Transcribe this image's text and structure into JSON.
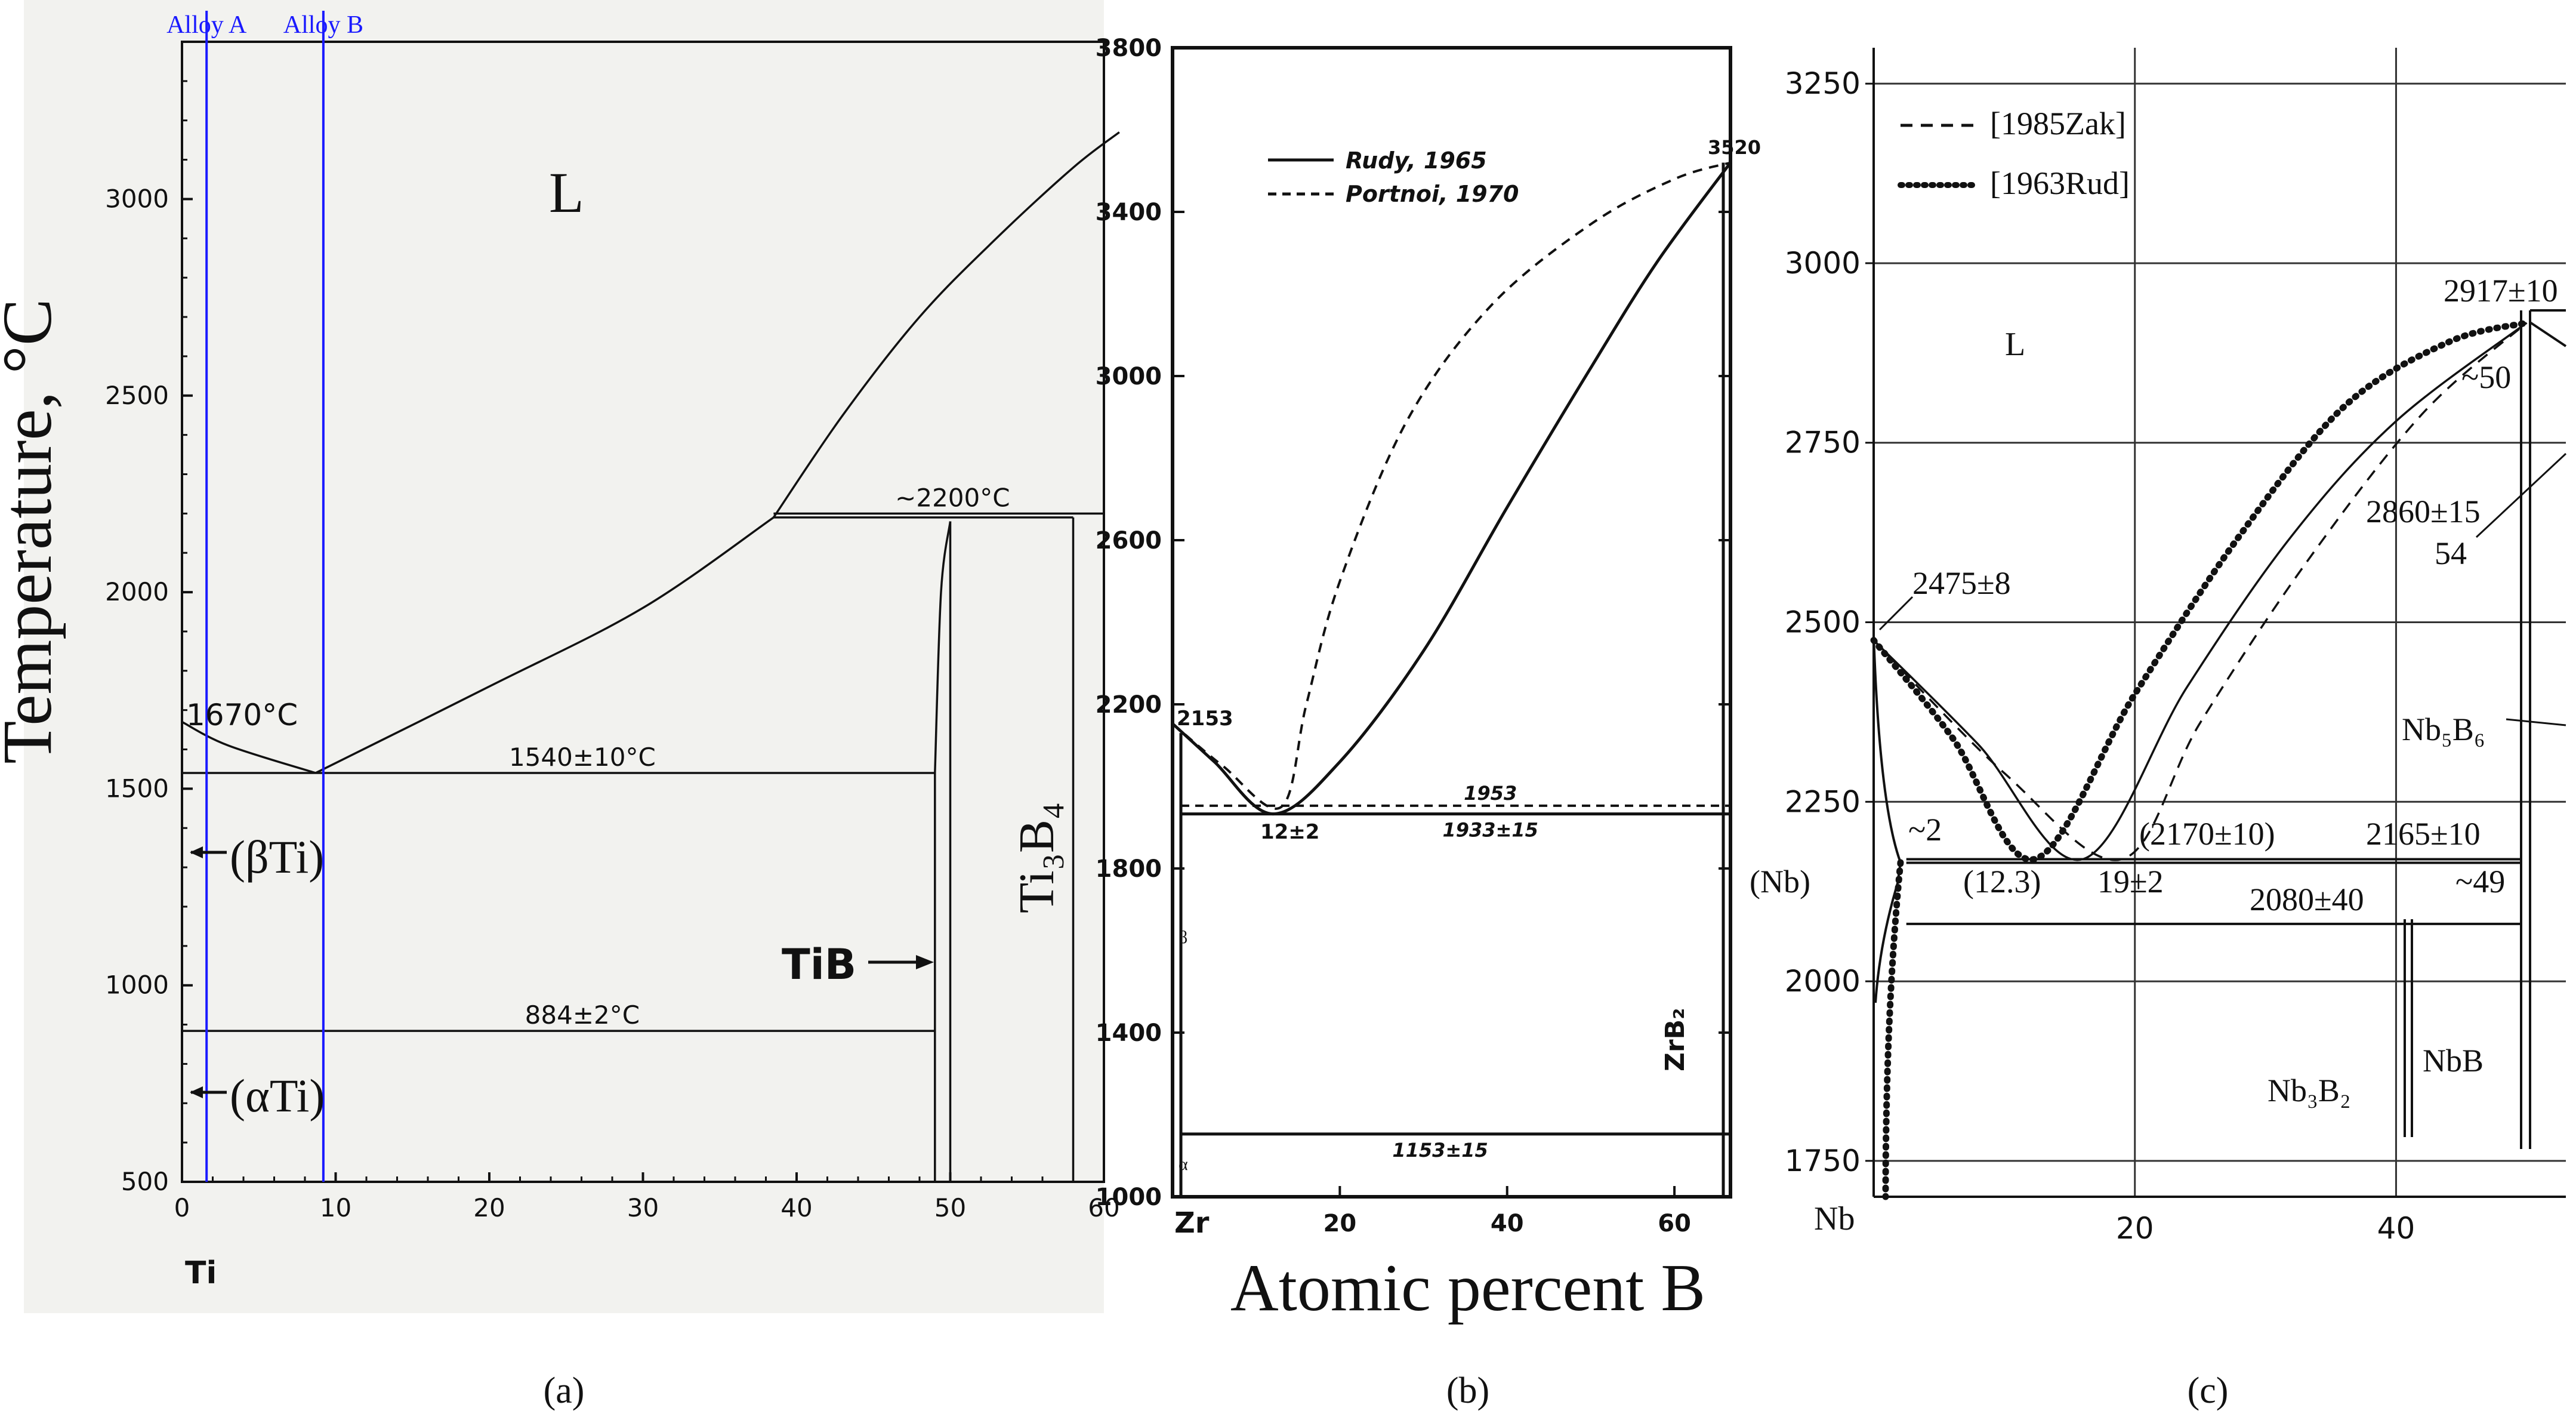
{
  "figure": {
    "shared_xlabel": "Atomic percent B",
    "shared_ylabel": "Temperature, °C"
  },
  "chart_data": [
    {
      "panel_label": "(a)",
      "type": "line",
      "xlim": [
        0,
        60
      ],
      "ylim": [
        500,
        3400
      ],
      "xticks": [
        0,
        10,
        20,
        30,
        40,
        50,
        60
      ],
      "xtick_labels": [
        "0",
        "10",
        "20",
        "30",
        "40",
        "50",
        "60"
      ],
      "yticks": [
        500,
        1000,
        1500,
        2000,
        2500,
        3000
      ],
      "ytick_labels": [
        "500",
        "1000",
        "1500",
        "2000",
        "2500",
        "3000"
      ],
      "x_origin_label": "Ti",
      "alloy_lines": [
        {
          "name": "Alloy A",
          "x": 1.6,
          "color": "#1a1aff"
        },
        {
          "name": "Alloy B",
          "x": 9.2,
          "color": "#1a1aff"
        }
      ],
      "curves": [
        {
          "name": "liquidus-ti-side",
          "points": [
            [
              0,
              1670
            ],
            [
              3,
              1610
            ],
            [
              8.7,
              1540
            ]
          ]
        },
        {
          "name": "liquidus-tib-side",
          "points": [
            [
              8.7,
              1540
            ],
            [
              20,
              1760
            ],
            [
              30,
              1960
            ],
            [
              38.5,
              2190
            ]
          ]
        },
        {
          "name": "liquidus-boron-side",
          "points": [
            [
              38.5,
              2190
            ],
            [
              43,
              2450
            ],
            [
              48,
              2700
            ],
            [
              53,
              2900
            ],
            [
              58,
              3080
            ],
            [
              61,
              3170
            ]
          ]
        },
        {
          "name": "tib-left-boundary",
          "points": [
            [
              49,
              1540
            ],
            [
              49.4,
              2000
            ],
            [
              50,
              2180
            ]
          ]
        },
        {
          "name": "tib-right-boundary",
          "points": [
            [
              50,
              2180
            ],
            [
              50,
              500
            ]
          ]
        },
        {
          "name": "ti3b4-line",
          "points": [
            [
              58,
              2190
            ],
            [
              58,
              500
            ]
          ]
        },
        {
          "name": "tib-left-lower",
          "points": [
            [
              49,
              1540
            ],
            [
              49,
              500
            ]
          ]
        }
      ],
      "isotherms": [
        {
          "y": 2200,
          "x": [
            38.5,
            60
          ],
          "label": "~2200°C"
        },
        {
          "y": 2190,
          "x": [
            38.5,
            58
          ]
        },
        {
          "y": 1540,
          "x": [
            0,
            49
          ],
          "label": "1540±10°C"
        },
        {
          "y": 884,
          "x": [
            0,
            49
          ],
          "label": "884±2°C"
        }
      ],
      "annotations": [
        "L",
        "1670°C",
        "(βTi)",
        "(αTi)",
        "TiB",
        "Ti₃B₄"
      ],
      "grid": false
    },
    {
      "panel_label": "(b)",
      "type": "line",
      "xlim": [
        0,
        66.7
      ],
      "ylim": [
        1000,
        3800
      ],
      "xticks": [
        20,
        40,
        60
      ],
      "xtick_labels": [
        "20",
        "40",
        "60"
      ],
      "yticks": [
        1000,
        1400,
        1800,
        2200,
        2600,
        3000,
        3400,
        3800
      ],
      "ytick_labels": [
        "1000",
        "1400",
        "1800",
        "2200",
        "2600",
        "3000",
        "3400",
        "3800"
      ],
      "x_origin_label": "Zr",
      "legend": {
        "placement": "top-left",
        "entries": [
          {
            "name": "Rudy, 1965",
            "style": "solid"
          },
          {
            "name": "Portnoi, 1970",
            "style": "dashed"
          }
        ]
      },
      "series": [
        {
          "name": "Rudy, 1965",
          "style": "solid",
          "points": [
            [
              0,
              2153
            ],
            [
              5,
              2060
            ],
            [
              12,
              1933
            ],
            [
              20,
              2060
            ],
            [
              30,
              2330
            ],
            [
              40,
              2680
            ],
            [
              50,
              3020
            ],
            [
              58,
              3280
            ],
            [
              66.7,
              3520
            ]
          ]
        },
        {
          "name": "Portnoi, 1970",
          "style": "dashed",
          "points": [
            [
              0,
              2153
            ],
            [
              6,
              2050
            ],
            [
              13,
              1950
            ],
            [
              16,
              2200
            ],
            [
              20,
              2500
            ],
            [
              28,
              2890
            ],
            [
              38,
              3170
            ],
            [
              50,
              3370
            ],
            [
              60,
              3480
            ],
            [
              66.7,
              3520
            ]
          ]
        }
      ],
      "isotherms": [
        {
          "y": 1953,
          "style": "dashed",
          "label": "1953"
        },
        {
          "y": 1933,
          "style": "solid",
          "label": "1933±15"
        },
        {
          "y": 1153,
          "style": "solid",
          "label": "1153±15"
        }
      ],
      "annotations": [
        "2153",
        "12±2",
        "3520",
        "ZrB₂",
        "β",
        "α"
      ],
      "grid": false
    },
    {
      "panel_label": "(c)",
      "type": "line",
      "xlim": [
        0,
        53
      ],
      "ylim": [
        1700,
        3300
      ],
      "xticks": [
        20,
        40
      ],
      "xtick_labels": [
        "20",
        "40"
      ],
      "yticks": [
        1750,
        2000,
        2250,
        2500,
        2750,
        3000,
        3250
      ],
      "ytick_labels": [
        "1750",
        "2000",
        "2250",
        "2500",
        "2750",
        "3000",
        "3250"
      ],
      "x_origin_label": "Nb",
      "legend": {
        "placement": "top-left",
        "entries": [
          {
            "name": "[1985Zak]",
            "style": "dashed"
          },
          {
            "name": "[1963Rud]",
            "style": "dotted"
          }
        ]
      },
      "series": [
        {
          "name": "[1985Zak]",
          "style": "dashed",
          "points": [
            [
              0,
              2475
            ],
            [
              10,
              2290
            ],
            [
              19,
              2170
            ],
            [
              25,
              2360
            ],
            [
              33,
              2580
            ],
            [
              42,
              2790
            ],
            [
              50,
              2917
            ]
          ]
        },
        {
          "name": "[1963Rud]",
          "style": "dotted",
          "points": [
            [
              0,
              2475
            ],
            [
              6,
              2340
            ],
            [
              12.3,
              2170
            ],
            [
              20,
              2400
            ],
            [
              28,
              2620
            ],
            [
              36,
              2800
            ],
            [
              44,
              2890
            ],
            [
              50,
              2917
            ]
          ]
        },
        {
          "name": "solid",
          "style": "solid",
          "points": [
            [
              0,
              2475
            ],
            [
              8,
              2330
            ],
            [
              16,
              2170
            ],
            [
              24,
              2410
            ],
            [
              32,
              2620
            ],
            [
              40,
              2780
            ],
            [
              50,
              2917
            ]
          ]
        }
      ],
      "isotherms": [
        {
          "y": 2170,
          "label": "(2170±10)"
        },
        {
          "y": 2165,
          "label": "2165±10"
        },
        {
          "y": 2080,
          "label": "2080±40"
        }
      ],
      "annotations": [
        "L",
        "2917±10",
        "~50",
        "2860±15",
        "54",
        "2475±8",
        "Nb₅B₆",
        "~2",
        "(Nb)",
        "(12.3)",
        "19±2",
        "~49",
        "NbB",
        "Nb₃B₂"
      ],
      "grid": true
    }
  ]
}
